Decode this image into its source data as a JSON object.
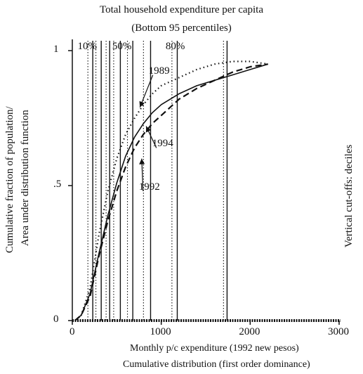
{
  "chart_data": {
    "type": "line",
    "title": "Total household expenditure per capita",
    "subtitle": "(Bottom 95 percentiles)",
    "xlabel": "Monthly p/c expenditure (1992 new pesos)",
    "xlabel2": "Cumulative distribution (first order dominance)",
    "ylabel_line1": "Cumulative fraction of population/",
    "ylabel_line2": "Area under distribution function",
    "right_label": "Vertical cut-offs: deciles",
    "xlim": [
      0,
      3000
    ],
    "ylim": [
      0,
      1
    ],
    "x_ticks": [
      {
        "value": 0,
        "label": "0"
      },
      {
        "value": 1000,
        "label": "1000"
      },
      {
        "value": 2000,
        "label": "2000"
      },
      {
        "value": 3000,
        "label": "3000"
      }
    ],
    "y_ticks": [
      {
        "value": 0,
        "label": "0"
      },
      {
        "value": 0.5,
        "label": ".5"
      },
      {
        "value": 1,
        "label": "1"
      }
    ],
    "decile_labels": [
      {
        "label": "10%",
        "x": 170
      },
      {
        "label": "50%",
        "x": 560
      },
      {
        "label": "80%",
        "x": 1160
      }
    ],
    "series": [
      {
        "name": "1989",
        "style": "dotted",
        "x": [
          30,
          100,
          200,
          300,
          400,
          500,
          600,
          700,
          800,
          900,
          1000,
          1200,
          1400,
          1600,
          1800,
          2000,
          2200
        ],
        "y": [
          0.0,
          0.02,
          0.12,
          0.32,
          0.48,
          0.6,
          0.69,
          0.75,
          0.8,
          0.84,
          0.87,
          0.9,
          0.93,
          0.95,
          0.96,
          0.96,
          0.95
        ]
      },
      {
        "name": "1994",
        "style": "solid",
        "x": [
          30,
          100,
          200,
          300,
          400,
          500,
          600,
          700,
          800,
          900,
          1000,
          1200,
          1400,
          1600,
          1800,
          2000,
          2200
        ],
        "y": [
          0.0,
          0.02,
          0.1,
          0.25,
          0.39,
          0.51,
          0.61,
          0.68,
          0.73,
          0.77,
          0.8,
          0.84,
          0.87,
          0.89,
          0.91,
          0.93,
          0.95
        ]
      },
      {
        "name": "1992",
        "style": "dashed",
        "x": [
          30,
          100,
          200,
          300,
          400,
          500,
          600,
          700,
          800,
          900,
          1000,
          1200,
          1400,
          1600,
          1800,
          2000,
          2200
        ],
        "y": [
          0.0,
          0.02,
          0.09,
          0.24,
          0.37,
          0.48,
          0.57,
          0.64,
          0.69,
          0.73,
          0.76,
          0.82,
          0.86,
          0.89,
          0.92,
          0.94,
          0.95
        ]
      }
    ],
    "curve_labels": [
      {
        "label": "1989",
        "x": 1000,
        "y": 0.92
      },
      {
        "label": "1994",
        "x": 1040,
        "y": 0.65
      },
      {
        "label": "1992",
        "x": 890,
        "y": 0.49
      }
    ],
    "verticals": [
      {
        "x": 175,
        "style": "dotted"
      },
      {
        "x": 230,
        "style": "solid"
      },
      {
        "x": 265,
        "style": "dotted"
      },
      {
        "x": 325,
        "style": "solid"
      },
      {
        "x": 380,
        "style": "dotted"
      },
      {
        "x": 420,
        "style": "solid"
      },
      {
        "x": 465,
        "style": "dotted"
      },
      {
        "x": 540,
        "style": "solid"
      },
      {
        "x": 620,
        "style": "dotted"
      },
      {
        "x": 680,
        "style": "solid"
      },
      {
        "x": 800,
        "style": "dotted"
      },
      {
        "x": 880,
        "style": "solid"
      },
      {
        "x": 1120,
        "style": "dotted"
      },
      {
        "x": 1180,
        "style": "solid"
      },
      {
        "x": 1700,
        "style": "dotted"
      },
      {
        "x": 1740,
        "style": "solid"
      }
    ],
    "grid": false,
    "legend": "none"
  }
}
